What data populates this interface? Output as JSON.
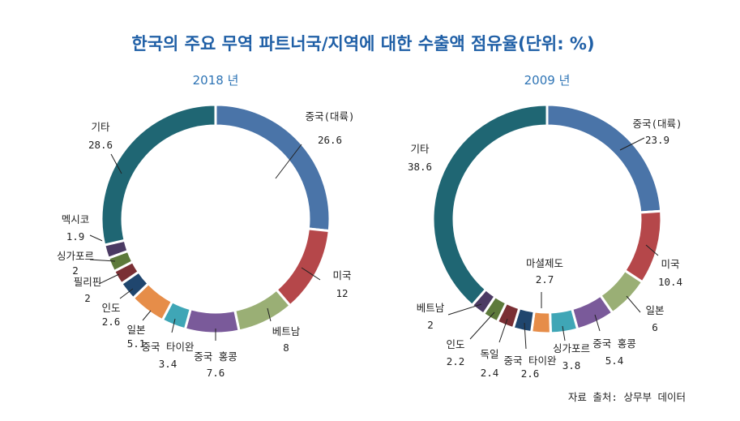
{
  "title": "한국의 주요 무역 파트너국/지역에 대한 수출액 점유율(단위: %)",
  "source": "자료 출처: 상무부 데이터",
  "colors": {
    "title": "#1f5fa6",
    "year": "#2e74b5",
    "china": "#4a74a8",
    "us": "#b5474a",
    "vietnam": "#9aaf75",
    "hongkong": "#7a5a9a",
    "taiwan": "#3fa6b6",
    "japan": "#e68d49",
    "india": "#20466e",
    "philippines": "#7a2f34",
    "singapore": "#5d7a3b",
    "mexico": "#4b3a63",
    "malaysia": "#e68d49",
    "other": "#1f6673"
  },
  "chart_data": [
    {
      "type": "pie",
      "title": "2018 년",
      "slices": [
        {
          "label": "중국(대륙)",
          "value": 26.6,
          "value_text": "26.6",
          "color_key": "china"
        },
        {
          "label": "미국",
          "value": 12,
          "value_text": "12",
          "color_key": "us"
        },
        {
          "label": "베트남",
          "value": 8,
          "value_text": "8",
          "color_key": "vietnam"
        },
        {
          "label": "중국 홍콩",
          "value": 7.6,
          "value_text": "7.6",
          "color_key": "hongkong"
        },
        {
          "label": "중국 타이완",
          "value": 3.4,
          "value_text": "3.4",
          "color_key": "taiwan"
        },
        {
          "label": "일본",
          "value": 5.1,
          "value_text": "5.1",
          "color_key": "japan"
        },
        {
          "label": "인도",
          "value": 2.6,
          "value_text": "2.6",
          "color_key": "india"
        },
        {
          "label": "필리핀",
          "value": 2,
          "value_text": "2",
          "color_key": "philippines"
        },
        {
          "label": "싱가포르",
          "value": 2,
          "value_text": "2",
          "color_key": "singapore"
        },
        {
          "label": "멕시코",
          "value": 1.9,
          "value_text": "1.9",
          "color_key": "mexico"
        },
        {
          "label": "기타",
          "value": 28.6,
          "value_text": "28.6",
          "color_key": "other"
        }
      ]
    },
    {
      "type": "pie",
      "title": "2009 년",
      "slices": [
        {
          "label": "중국(대륙)",
          "value": 23.9,
          "value_text": "23.9",
          "color_key": "china"
        },
        {
          "label": "미국",
          "value": 10.4,
          "value_text": "10.4",
          "color_key": "us"
        },
        {
          "label": "일본",
          "value": 6,
          "value_text": "6",
          "color_key": "vietnam"
        },
        {
          "label": "중국 홍콩",
          "value": 5.4,
          "value_text": "5.4",
          "color_key": "hongkong"
        },
        {
          "label": "싱가포르",
          "value": 3.8,
          "value_text": "3.8",
          "color_key": "taiwan"
        },
        {
          "label": "마셜제도",
          "value": 2.7,
          "value_text": "2.7",
          "color_key": "malaysia"
        },
        {
          "label": "중국 타이완",
          "value": 2.6,
          "value_text": "2.6",
          "color_key": "india"
        },
        {
          "label": "독일",
          "value": 2.4,
          "value_text": "2.4",
          "color_key": "philippines"
        },
        {
          "label": "인도",
          "value": 2.2,
          "value_text": "2.2",
          "color_key": "singapore"
        },
        {
          "label": "베트남",
          "value": 2,
          "value_text": "2",
          "color_key": "mexico"
        },
        {
          "label": "기타",
          "value": 38.6,
          "value_text": "38.6",
          "color_key": "other"
        }
      ]
    }
  ]
}
